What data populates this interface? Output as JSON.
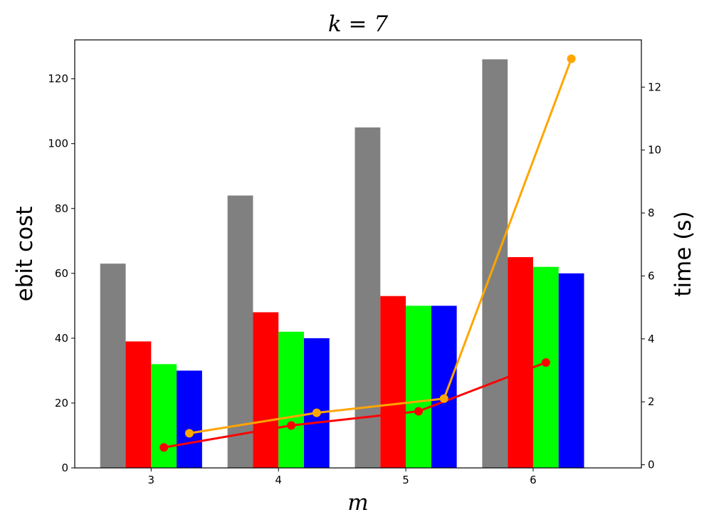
{
  "chart_data": {
    "type": "bar",
    "title": "k = 7",
    "xlabel": "m",
    "ylabel": "ebit cost",
    "y2label": "time (s)",
    "categories": [
      "3",
      "4",
      "5",
      "6"
    ],
    "ylim": [
      0,
      132
    ],
    "y2lim": [
      -0.1,
      13.5
    ],
    "yticks": [
      0,
      20,
      40,
      60,
      80,
      100,
      120
    ],
    "y2ticks": [
      0,
      2,
      4,
      6,
      8,
      10,
      12
    ],
    "grid": false,
    "bar_series": [
      {
        "color": "#808080",
        "values": [
          63,
          84,
          105,
          126
        ]
      },
      {
        "color": "#ff0000",
        "values": [
          39,
          48,
          53,
          65
        ]
      },
      {
        "color": "#00ff00",
        "values": [
          32,
          42,
          50,
          62
        ]
      },
      {
        "color": "#0000ff",
        "values": [
          30,
          40,
          50,
          60
        ]
      }
    ],
    "line_series": [
      {
        "color": "#ff0000",
        "x_offset": 0.1,
        "values": [
          0.55,
          1.25,
          1.7,
          3.25
        ]
      },
      {
        "color": "#ffa500",
        "x_offset": 0.3,
        "values": [
          1.0,
          1.65,
          2.1,
          12.9
        ]
      }
    ]
  }
}
